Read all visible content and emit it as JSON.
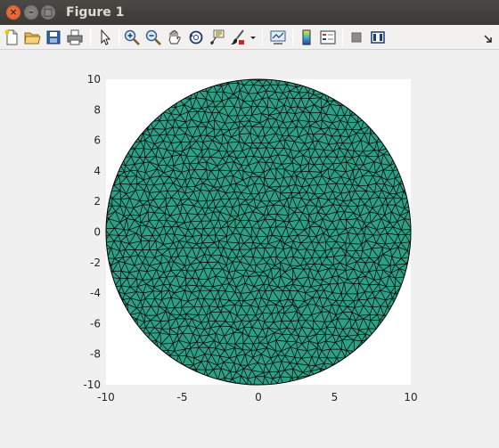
{
  "window": {
    "title": "Figure 1",
    "close_glyph": "×",
    "minimize_glyph": "–",
    "maximize_glyph": "□"
  },
  "toolbar": {
    "items": [
      {
        "name": "new-figure-icon"
      },
      {
        "name": "open-file-icon"
      },
      {
        "name": "save-icon"
      },
      {
        "name": "print-icon"
      },
      {
        "name": "pointer-icon"
      },
      {
        "name": "zoom-in-icon"
      },
      {
        "name": "zoom-out-icon"
      },
      {
        "name": "pan-hand-icon"
      },
      {
        "name": "rotate-3d-icon"
      },
      {
        "name": "data-cursor-icon"
      },
      {
        "name": "brush-icon"
      },
      {
        "name": "brush-dropdown-icon"
      },
      {
        "name": "link-plot-icon"
      },
      {
        "name": "colorbar-icon"
      },
      {
        "name": "legend-icon"
      },
      {
        "name": "hide-plot-tools-icon"
      },
      {
        "name": "show-plot-tools-icon"
      },
      {
        "name": "dock-arrow-icon"
      }
    ]
  },
  "chart_data": {
    "type": "mesh",
    "title": "",
    "xlabel": "",
    "ylabel": "",
    "xlim": [
      -10,
      10
    ],
    "ylim": [
      -10,
      10
    ],
    "x_ticks": [
      -10,
      -5,
      0,
      5,
      10
    ],
    "x_tick_labels": [
      "-10",
      "-5",
      "0",
      "5",
      "10"
    ],
    "y_ticks": [
      -10,
      -8,
      -6,
      -4,
      -2,
      0,
      2,
      4,
      6,
      8,
      10
    ],
    "y_tick_labels": [
      "-10",
      "-8",
      "-6",
      "-4",
      "-2",
      "0",
      "2",
      "4",
      "6",
      "8",
      "10"
    ],
    "shape": "circle",
    "center": [
      0,
      0
    ],
    "radius": 10,
    "face_color": "#2e9e85",
    "edge_color": "#000000",
    "grid": false
  }
}
